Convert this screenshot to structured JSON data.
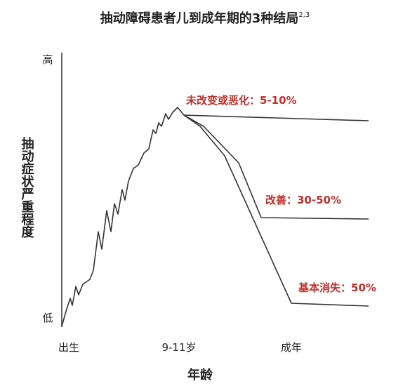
{
  "header": {
    "title": "抽动障碍患者儿到成年期的3种结局",
    "title_sup": "2,3"
  },
  "y_axis": {
    "high": "高",
    "low": "低",
    "title": "抽动症状严重程度"
  },
  "x_axis": {
    "labels": [
      "出生",
      "9-11岁",
      "成年"
    ],
    "title": "年龄"
  },
  "outcomes": [
    "未改变或恶化：5-10%",
    "改善：30-50%",
    "基本消失：50%"
  ]
}
